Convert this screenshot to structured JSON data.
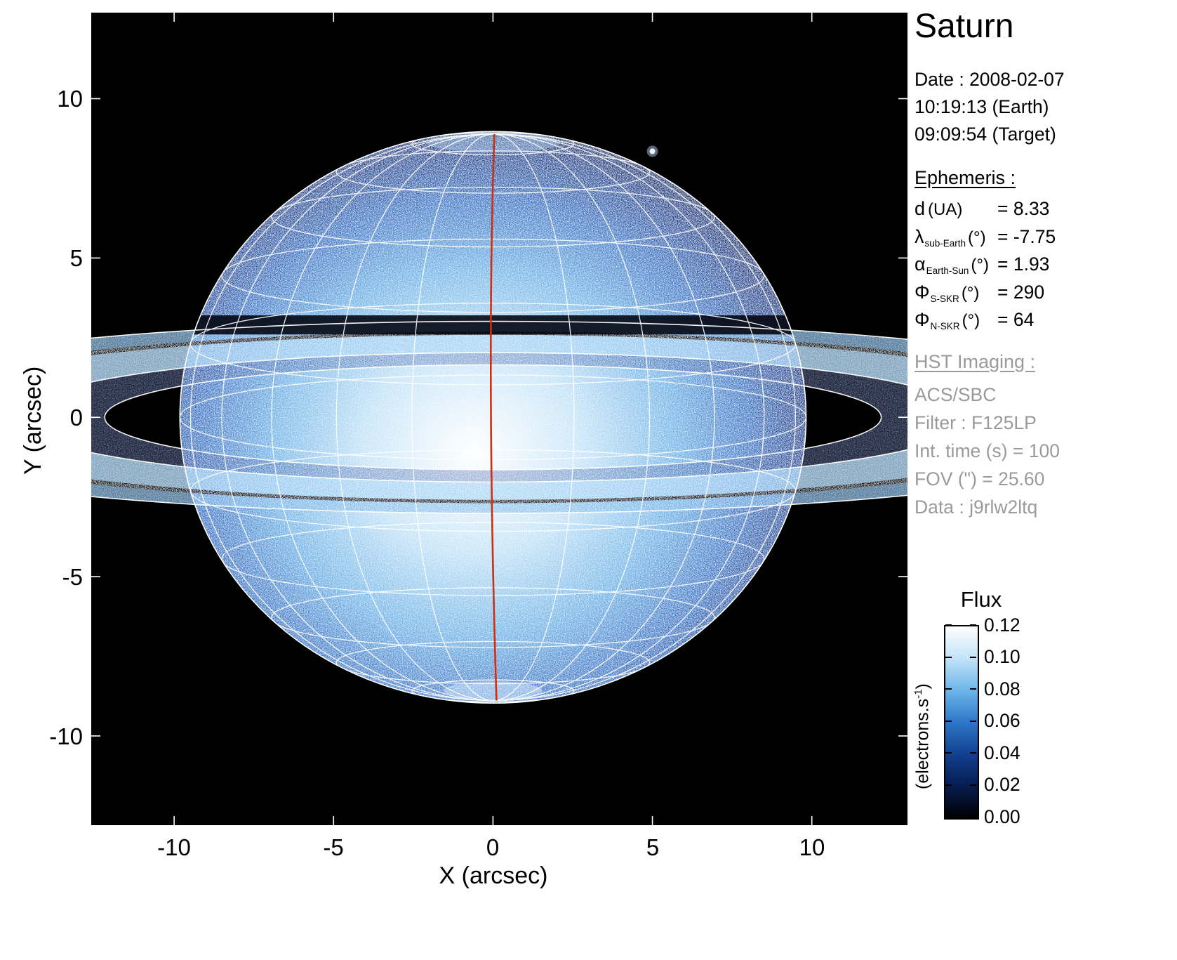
{
  "axes": {
    "xlabel": "X (arcsec)",
    "ylabel": "Y (arcsec)",
    "x_ticks": [
      "-10",
      "-5",
      "0",
      "5",
      "10"
    ],
    "y_ticks": [
      "10",
      "5",
      "0",
      "-5",
      "-10"
    ]
  },
  "info": {
    "title": "Saturn",
    "date_line1": "Date : 2008-02-07",
    "date_line2": "10:19:13 (Earth)",
    "date_line3": "09:09:54 (Target)",
    "ephemeris_heading": "Ephemeris :",
    "ephemeris": [
      {
        "symbol": "d",
        "subscript": "",
        "unit": "(UA)",
        "value": "= 8.33"
      },
      {
        "symbol": "λ",
        "subscript": "sub-Earth",
        "unit": "(°)",
        "value": "= -7.75"
      },
      {
        "symbol": "α",
        "subscript": "Earth-Sun",
        "unit": "(°)",
        "value": "= 1.93"
      },
      {
        "symbol": "Φ",
        "subscript": "S-SKR",
        "unit": "(°)",
        "value": "= 290"
      },
      {
        "symbol": "Φ",
        "subscript": "N-SKR",
        "unit": "(°)",
        "value": "= 64"
      }
    ],
    "hst_heading": "HST Imaging :",
    "hst_lines": [
      "ACS/SBC",
      "Filter : F125LP",
      "Int. time (s) = 100",
      "FOV (\") = 25.60",
      "Data : j9rlw2ltq"
    ]
  },
  "colorbar": {
    "title": "Flux",
    "unit_pre": "(electrons.s",
    "unit_sup": "-1",
    "unit_post": ")",
    "ticks": [
      "0.12",
      "0.10",
      "0.08",
      "0.06",
      "0.04",
      "0.02",
      "0.00"
    ]
  },
  "chart_data": {
    "type": "heatmap",
    "title": "Saturn",
    "xlabel": "X (arcsec)",
    "ylabel": "Y (arcsec)",
    "xlim": [
      -12.6,
      13.0
    ],
    "ylim": [
      -12.8,
      12.7
    ],
    "x_ticks": [
      -10,
      -5,
      0,
      5,
      10
    ],
    "y_ticks": [
      10,
      5,
      0,
      -5,
      -10
    ],
    "grid": false,
    "background_color": "#000000",
    "flux_unit": "electrons/s",
    "flux_min": 0.0,
    "flux_max": 0.12,
    "flux_ticks": [
      0.12,
      0.1,
      0.08,
      0.06,
      0.04,
      0.02,
      0.0
    ],
    "colormap_stops": [
      "#000000",
      "#061c4e",
      "#12408f",
      "#2e77c8",
      "#6db5e8",
      "#c2e3f8",
      "#ffffff"
    ],
    "planet": {
      "center_arcsec": [
        0,
        0
      ],
      "equatorial_radius_arcsec": 9.82,
      "polar_radius_arcsec": 8.97,
      "sub_earth_latitude_deg": -7.75,
      "grid_step_deg": 15,
      "grid_color": "#ffffff",
      "central_meridian_color": "#cc2f11"
    },
    "rings": {
      "opening_ratio": 0.135,
      "bands": [
        {
          "name": "C ring",
          "r_in": 1.24,
          "r_out": 1.53,
          "fill": "rgba(45,85,165,0.40)"
        },
        {
          "name": "B ring",
          "r_in": 1.53,
          "r_out": 1.95,
          "fill": "rgba(160,210,245,0.78)"
        },
        {
          "name": "Cassini division",
          "r_in": 1.95,
          "r_out": 2.03,
          "fill": "rgba(2,8,24,0.92)"
        },
        {
          "name": "A ring",
          "r_in": 2.03,
          "r_out": 2.27,
          "fill": "rgba(120,185,235,0.68)"
        }
      ],
      "outline_radii_rp": [
        1.24,
        1.53,
        2.27
      ],
      "outline_color": "#ffffff"
    },
    "ring_shadow_band": {
      "y_top_arcsec": 3.2,
      "y_bottom_arcsec": 2.6,
      "color": "rgba(0,2,12,0.88)"
    },
    "background_star": {
      "x_arcsec": 5.0,
      "y_arcsec": 8.35
    }
  }
}
